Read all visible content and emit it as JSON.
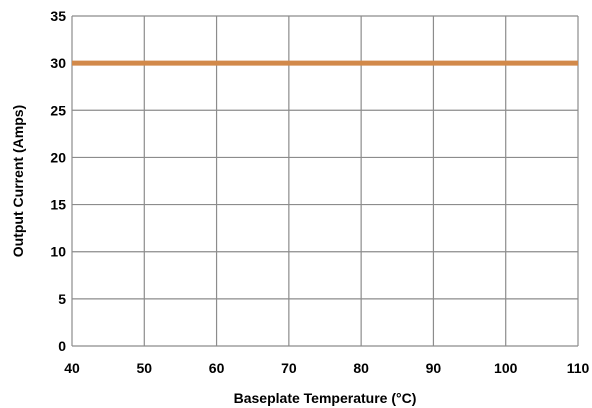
{
  "chart_data": {
    "type": "line",
    "title": "",
    "xlabel": "Baseplate Temperature (°C)",
    "ylabel": "Output Current (Amps)",
    "xlim": [
      40,
      110
    ],
    "ylim": [
      0,
      35
    ],
    "x_ticks": [
      40,
      50,
      60,
      70,
      80,
      90,
      100,
      110
    ],
    "y_ticks": [
      0,
      5,
      10,
      15,
      20,
      25,
      30,
      35
    ],
    "grid": true,
    "series": [
      {
        "color": "#d2894a",
        "x": [
          40,
          110
        ],
        "y": [
          30,
          30
        ]
      }
    ]
  }
}
